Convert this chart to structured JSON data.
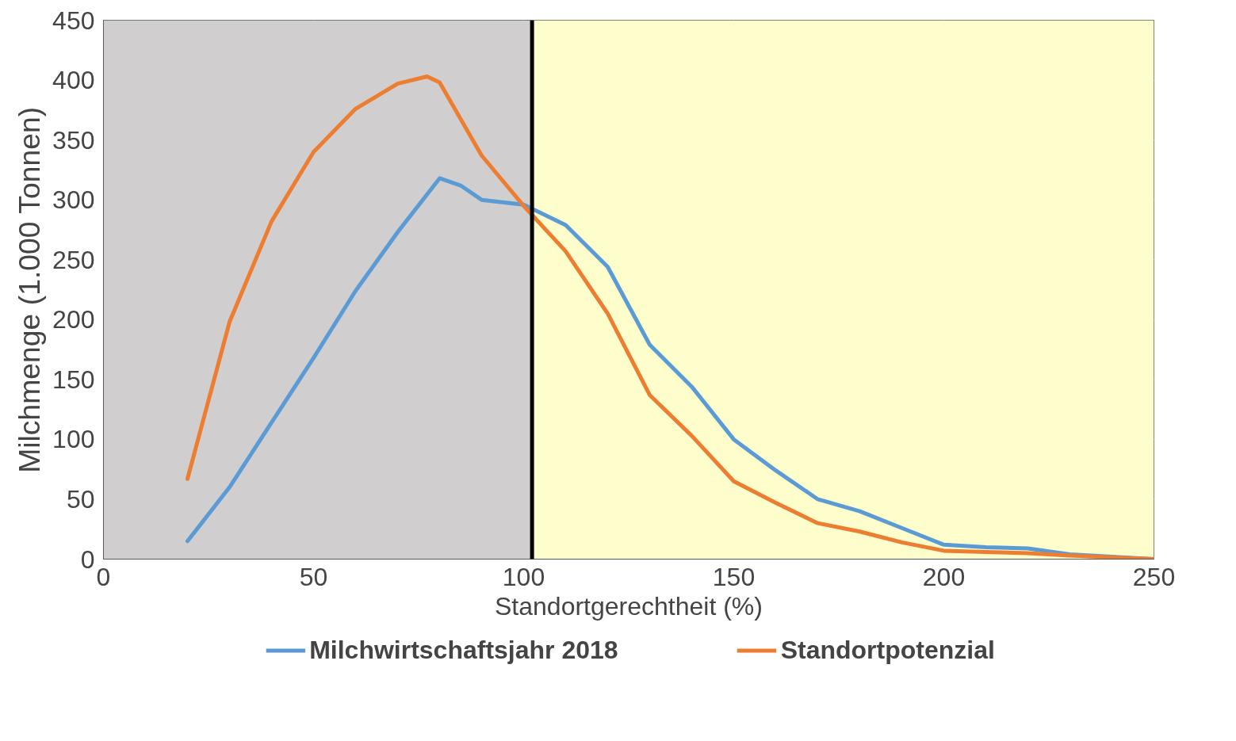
{
  "chart_data": {
    "type": "line",
    "xlabel": "Standortgerechtheit (%)",
    "ylabel": "Milchmenge (1.000 Tonnen)",
    "xlim": [
      0,
      250
    ],
    "ylim": [
      0,
      450
    ],
    "xticks": [
      0,
      50,
      100,
      150,
      200,
      250
    ],
    "yticks": [
      0,
      50,
      100,
      150,
      200,
      250,
      300,
      350,
      400,
      450
    ],
    "grid": true,
    "legend": "bottom",
    "line_style": "solid",
    "bands": [
      {
        "axis": "x",
        "from": 0,
        "to": 102,
        "color": "#d0cece"
      },
      {
        "axis": "x",
        "from": 102,
        "to": 250,
        "color": "#fefdcc"
      }
    ],
    "ref_lines": [
      {
        "axis": "x",
        "value": 102,
        "color": "#000000"
      }
    ],
    "series": [
      {
        "name": "Milchwirtschaftsjahr 2018",
        "color": "#5b9bd5",
        "x": [
          20,
          30,
          40,
          50,
          60,
          70,
          80,
          85,
          90,
          100,
          110,
          120,
          130,
          140,
          150,
          160,
          170,
          180,
          190,
          200,
          210,
          220,
          230,
          250
        ],
        "values": [
          15,
          60,
          114,
          168,
          224,
          273,
          318,
          312,
          300,
          296,
          279,
          244,
          179,
          144,
          100,
          74,
          50,
          40,
          26,
          12,
          10,
          9,
          4,
          0
        ]
      },
      {
        "name": "Standortpotenzial",
        "color": "#ed7d31",
        "x": [
          20,
          30,
          40,
          50,
          60,
          70,
          77,
          80,
          90,
          100,
          110,
          120,
          130,
          140,
          150,
          160,
          170,
          180,
          190,
          200,
          210,
          220,
          230,
          250
        ],
        "values": [
          67,
          198,
          282,
          340,
          376,
          397,
          403,
          398,
          337,
          295,
          257,
          205,
          137,
          103,
          65,
          47,
          30,
          23,
          14,
          7,
          6,
          5,
          3,
          0
        ]
      }
    ]
  }
}
